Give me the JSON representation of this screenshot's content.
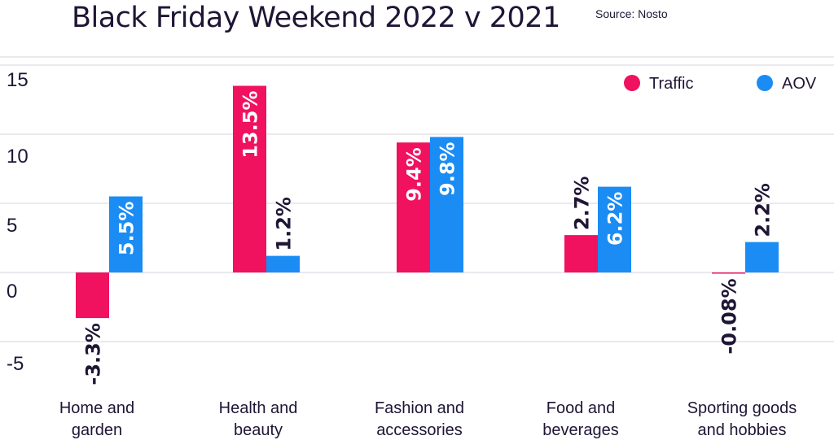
{
  "title": "Black Friday Weekend 2022 v 2021",
  "source": "Source: Nosto",
  "colors": {
    "traffic": "#f0115f",
    "aov": "#1a8cf4",
    "text": "#1f1535",
    "grid": "#d6d3dc"
  },
  "chart_data": {
    "type": "bar",
    "title": "Black Friday Weekend 2022 v 2021",
    "categories": [
      [
        "Home and",
        "garden"
      ],
      [
        "Health and",
        "beauty"
      ],
      [
        "Fashion and",
        "accessories"
      ],
      [
        "Food and",
        "beverages"
      ],
      [
        "Sporting goods",
        "and hobbies"
      ]
    ],
    "series": [
      {
        "name": "Traffic",
        "values": [
          -3.3,
          13.5,
          9.4,
          2.7,
          -0.08
        ],
        "labels": [
          "-3.3%",
          "13.5%",
          "9.4%",
          "2.7%",
          "-0.08%"
        ]
      },
      {
        "name": "AOV",
        "values": [
          5.5,
          1.2,
          9.8,
          6.2,
          2.2
        ],
        "labels": [
          "5.5%",
          "1.2%",
          "9.8%",
          "6.2%",
          "2.2%"
        ]
      }
    ],
    "yticks": [
      15,
      10,
      5,
      0,
      -5
    ],
    "ylim": [
      -6,
      16
    ],
    "grid": true,
    "legend_position": "top-right"
  }
}
